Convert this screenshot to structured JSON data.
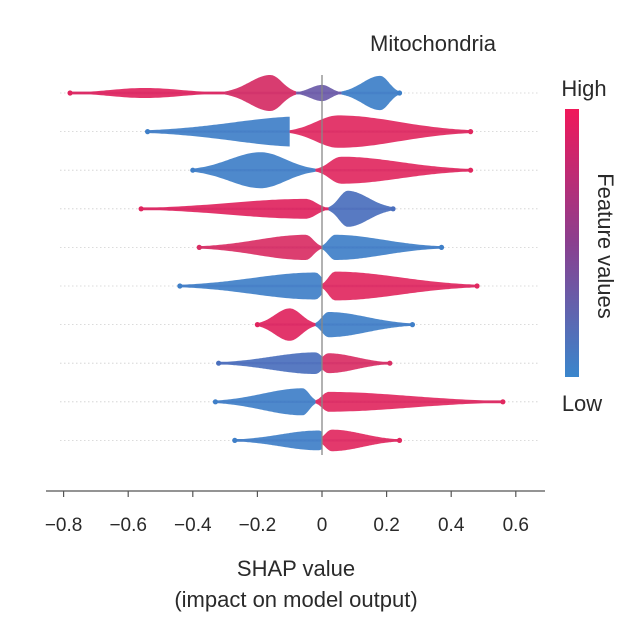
{
  "chart_data": {
    "type": "scatter",
    "subtype": "shap-beeswarm",
    "title": "Mitochondria",
    "xlabel_line1": "SHAP value",
    "xlabel_line2": "(impact on model output)",
    "xlim": [
      -0.82,
      0.68
    ],
    "xticks": [
      -0.8,
      -0.6,
      -0.4,
      -0.2,
      0,
      0.2,
      0.4,
      0.6
    ],
    "xtick_labels": [
      "−0.8",
      "−0.6",
      "−0.4",
      "−0.2",
      "0",
      "0.2",
      "0.4",
      "0.6"
    ],
    "colorbar": {
      "label": "Feature values",
      "high_label": "High",
      "low_label": "Low",
      "high_color": "#e8185c",
      "low_color": "#3f7fc8"
    },
    "features": [
      {
        "rank": 1,
        "min": -0.78,
        "max": 0.24,
        "segments": [
          {
            "from": -0.78,
            "to": -0.3,
            "center": -0.55,
            "thick": 0.28,
            "color": "#e0245e"
          },
          {
            "from": -0.3,
            "to": -0.08,
            "center": -0.16,
            "thick": 1.0,
            "color": "#d52b64"
          },
          {
            "from": -0.08,
            "to": 0.06,
            "center": 0.0,
            "thick": 0.45,
            "color": "#6a5aa8"
          },
          {
            "from": 0.06,
            "to": 0.24,
            "center": 0.18,
            "thick": 0.95,
            "color": "#3d7fc8"
          }
        ]
      },
      {
        "rank": 2,
        "min": -0.54,
        "max": 0.46,
        "segments": [
          {
            "from": -0.54,
            "to": -0.1,
            "center": -0.05,
            "thick": 0.85,
            "color": "#3f7fc8"
          },
          {
            "from": -0.1,
            "to": 0.46,
            "center": 0.05,
            "thick": 0.9,
            "color": "#e1285f"
          }
        ]
      },
      {
        "rank": 3,
        "min": -0.4,
        "max": 0.46,
        "segments": [
          {
            "from": -0.4,
            "to": -0.02,
            "center": -0.19,
            "thick": 1.0,
            "color": "#3f7fc8"
          },
          {
            "from": -0.02,
            "to": 0.46,
            "center": 0.06,
            "thick": 0.75,
            "color": "#e1285f"
          }
        ]
      },
      {
        "rank": 4,
        "min": -0.56,
        "max": 0.22,
        "segments": [
          {
            "from": -0.56,
            "to": 0.02,
            "center": -0.05,
            "thick": 0.55,
            "color": "#e0245e"
          },
          {
            "from": 0.02,
            "to": 0.22,
            "center": 0.08,
            "thick": 1.0,
            "color": "#4a6fbd"
          }
        ]
      },
      {
        "rank": 5,
        "min": -0.38,
        "max": 0.37,
        "segments": [
          {
            "from": -0.38,
            "to": 0.0,
            "center": -0.05,
            "thick": 0.7,
            "color": "#d92e64"
          },
          {
            "from": 0.0,
            "to": 0.37,
            "center": 0.04,
            "thick": 0.7,
            "color": "#3f7fc8"
          }
        ]
      },
      {
        "rank": 6,
        "min": -0.44,
        "max": 0.48,
        "segments": [
          {
            "from": -0.44,
            "to": 0.0,
            "center": -0.02,
            "thick": 0.75,
            "color": "#3f7fc8"
          },
          {
            "from": 0.0,
            "to": 0.48,
            "center": 0.04,
            "thick": 0.8,
            "color": "#e1285f"
          }
        ]
      },
      {
        "rank": 7,
        "min": -0.2,
        "max": 0.28,
        "segments": [
          {
            "from": -0.2,
            "to": -0.02,
            "center": -0.1,
            "thick": 0.9,
            "color": "#e0245e"
          },
          {
            "from": -0.02,
            "to": 0.28,
            "center": 0.02,
            "thick": 0.7,
            "color": "#3f7fc8"
          }
        ]
      },
      {
        "rank": 8,
        "min": -0.32,
        "max": 0.21,
        "segments": [
          {
            "from": -0.32,
            "to": 0.0,
            "center": -0.02,
            "thick": 0.6,
            "color": "#4a6fbd"
          },
          {
            "from": 0.0,
            "to": 0.21,
            "center": 0.02,
            "thick": 0.55,
            "color": "#d92e64"
          }
        ]
      },
      {
        "rank": 9,
        "min": -0.33,
        "max": 0.56,
        "segments": [
          {
            "from": -0.33,
            "to": -0.02,
            "center": -0.06,
            "thick": 0.75,
            "color": "#3f7fc8"
          },
          {
            "from": -0.02,
            "to": 0.56,
            "center": 0.02,
            "thick": 0.55,
            "color": "#e1285f"
          }
        ]
      },
      {
        "rank": 10,
        "min": -0.27,
        "max": 0.24,
        "segments": [
          {
            "from": -0.27,
            "to": 0.0,
            "center": -0.01,
            "thick": 0.55,
            "color": "#3f7fc8"
          },
          {
            "from": 0.0,
            "to": 0.24,
            "center": 0.03,
            "thick": 0.6,
            "color": "#e1285f"
          }
        ]
      }
    ]
  }
}
